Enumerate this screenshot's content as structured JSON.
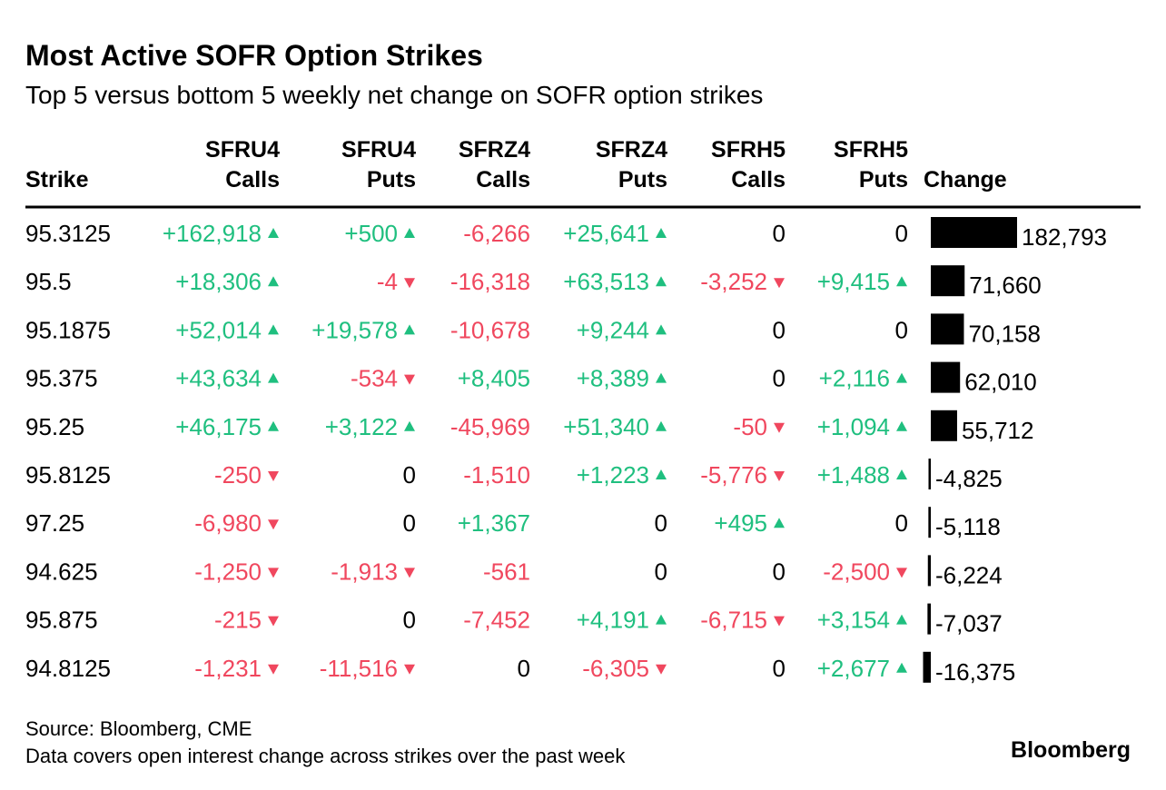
{
  "header": {
    "title": "Most Active SOFR Option Strikes",
    "subtitle": "Top 5 versus bottom 5 weekly net change on SOFR option strikes"
  },
  "columns": [
    {
      "lines": [
        "Strike"
      ]
    },
    {
      "lines": [
        "SFRU4",
        "Calls"
      ],
      "arrows": true
    },
    {
      "lines": [
        "SFRU4",
        "Puts"
      ],
      "arrows": true
    },
    {
      "lines": [
        "SFRZ4",
        "Calls"
      ],
      "arrows": false
    },
    {
      "lines": [
        "SFRZ4",
        "Puts"
      ],
      "arrows": true
    },
    {
      "lines": [
        "SFRH5",
        "Calls"
      ],
      "arrows": true
    },
    {
      "lines": [
        "SFRH5",
        "Puts"
      ],
      "arrows": true
    },
    {
      "lines": [
        "Change"
      ]
    }
  ],
  "rows": [
    {
      "strike": "95.3125",
      "cells": [
        "+162,918",
        "+500",
        "-6,266",
        "+25,641",
        "0",
        "0"
      ]
    },
    {
      "strike": "95.5",
      "cells": [
        "+18,306",
        "-4",
        "-16,318",
        "+63,513",
        "-3,252",
        "+9,415"
      ]
    },
    {
      "strike": "95.1875",
      "cells": [
        "+52,014",
        "+19,578",
        "-10,678",
        "+9,244",
        "0",
        "0"
      ]
    },
    {
      "strike": "95.375",
      "cells": [
        "+43,634",
        "-534",
        "+8,405",
        "+8,389",
        "0",
        "+2,116"
      ]
    },
    {
      "strike": "95.25",
      "cells": [
        "+46,175",
        "+3,122",
        "-45,969",
        "+51,340",
        "-50",
        "+1,094"
      ]
    },
    {
      "strike": "95.8125",
      "cells": [
        "-250",
        "0",
        "-1,510",
        "+1,223",
        "-5,776",
        "+1,488"
      ]
    },
    {
      "strike": "97.25",
      "cells": [
        "-6,980",
        "0",
        "+1,367",
        "0",
        "+495",
        "0"
      ]
    },
    {
      "strike": "94.625",
      "cells": [
        "-1,250",
        "-1,913",
        "-561",
        "0",
        "0",
        "-2,500"
      ]
    },
    {
      "strike": "95.875",
      "cells": [
        "-215",
        "0",
        "-7,452",
        "+4,191",
        "-6,715",
        "+3,154"
      ]
    },
    {
      "strike": "94.8125",
      "cells": [
        "-1,231",
        "-11,516",
        "0",
        "-6,305",
        "0",
        "+2,677"
      ]
    }
  ],
  "change": {
    "values": [
      182793,
      71660,
      70158,
      62010,
      55712,
      -4825,
      -5118,
      -6224,
      -7037,
      -16375
    ],
    "value_labels": [
      "182,793",
      "71,660",
      "70,158",
      "62,010",
      "55,712",
      "-4,825",
      "-5,118",
      "-6,224",
      "-7,037",
      "-16,375"
    ],
    "color": "#000000"
  },
  "colors": {
    "up": "#1fbf7f",
    "down": "#f0475e",
    "zero": "#000000"
  },
  "footer": {
    "source": "Source: Bloomberg, CME",
    "note": "Data covers open interest change across strikes over the past week",
    "brand": "Bloomberg"
  }
}
